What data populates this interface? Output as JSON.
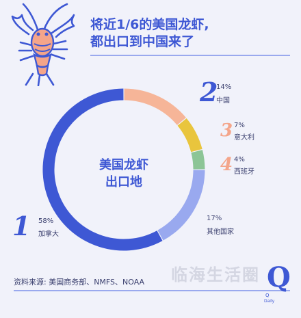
{
  "title": {
    "line1": "将近1/6的美国龙虾,",
    "line2": "都出口到中国来了"
  },
  "chart_data": {
    "type": "pie",
    "title": "将近1/6的美国龙虾, 都出口到中国来了",
    "center_label_line1": "美国龙虾",
    "center_label_line2": "出口地",
    "slices": [
      {
        "name": "加拿大",
        "value": 58,
        "rank": "1",
        "pct_label": "58%",
        "color": "#3e58d4"
      },
      {
        "name": "中国",
        "value": 14,
        "rank": "2",
        "pct_label": "14%",
        "color": "#f6b598"
      },
      {
        "name": "意大利",
        "value": 7,
        "rank": "3",
        "pct_label": "7%",
        "color": "#e9c53d"
      },
      {
        "name": "西班牙",
        "value": 4,
        "rank": "4",
        "pct_label": "4%",
        "color": "#8cc596"
      },
      {
        "name": "其他国家",
        "value": 17,
        "rank": "",
        "pct_label": "17%",
        "color": "#99a9ef"
      }
    ]
  },
  "source": "资料来源: 美国商务部、NMFS、NOAA",
  "watermark": "临海生活圈",
  "logo": {
    "letter": "Q",
    "sub": "Q",
    "sub2": "Daily"
  },
  "colors": {
    "accent": "#3e58d4",
    "background": "#f1f2fa",
    "lobster": "#f4a58a"
  },
  "icons": {
    "lobster": "lobster-illustration"
  }
}
